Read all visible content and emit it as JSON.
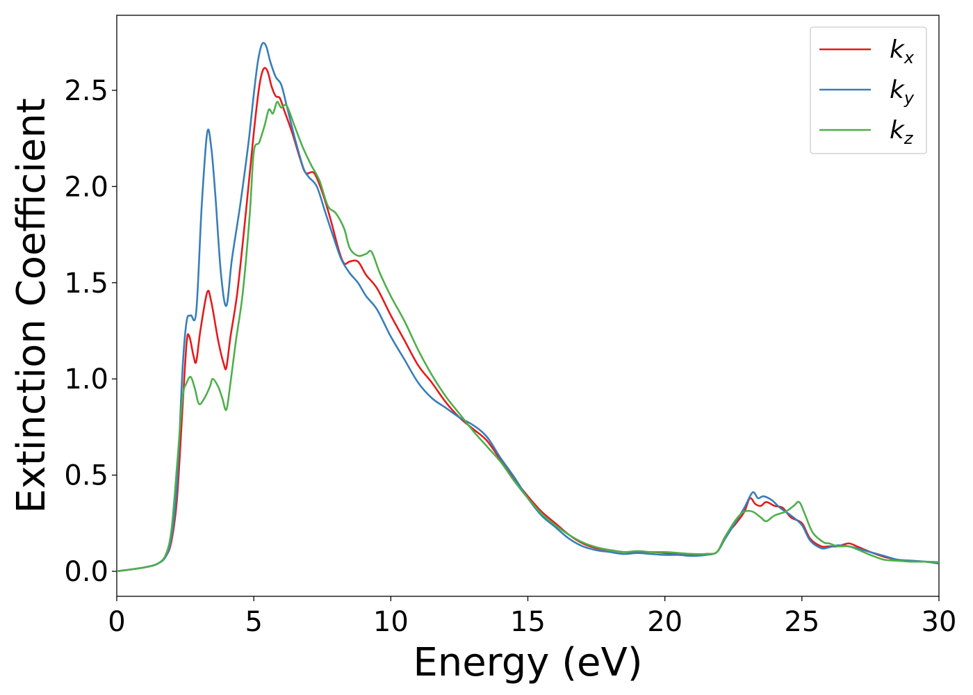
{
  "chart_data": {
    "type": "line",
    "title": "",
    "xlabel": "Energy (eV)",
    "ylabel": "Extinction Coefficient",
    "xlim": [
      0,
      30
    ],
    "ylim": [
      -0.13,
      2.89
    ],
    "xticks": [
      0,
      5,
      10,
      15,
      20,
      25,
      30
    ],
    "xtick_labels": [
      "0",
      "5",
      "10",
      "15",
      "20",
      "25",
      "30"
    ],
    "yticks": [
      0.0,
      0.5,
      1.0,
      1.5,
      2.0,
      2.5
    ],
    "ytick_labels": [
      "0.0",
      "0.5",
      "1.0",
      "1.5",
      "2.0",
      "2.5"
    ],
    "grid": false,
    "legend_position": "top-right",
    "series": [
      {
        "name": "k",
        "subscript": "x",
        "color": "#e41a1c",
        "points": [
          [
            0,
            0
          ],
          [
            1,
            0.02
          ],
          [
            1.5,
            0.04
          ],
          [
            1.8,
            0.08
          ],
          [
            2.0,
            0.16
          ],
          [
            2.2,
            0.38
          ],
          [
            2.4,
            0.85
          ],
          [
            2.55,
            1.19
          ],
          [
            2.65,
            1.22
          ],
          [
            2.8,
            1.12
          ],
          [
            2.9,
            1.09
          ],
          [
            3.05,
            1.25
          ],
          [
            3.3,
            1.45
          ],
          [
            3.45,
            1.4
          ],
          [
            3.7,
            1.2
          ],
          [
            3.9,
            1.08
          ],
          [
            4.0,
            1.06
          ],
          [
            4.15,
            1.22
          ],
          [
            4.4,
            1.45
          ],
          [
            4.7,
            1.85
          ],
          [
            5.0,
            2.28
          ],
          [
            5.2,
            2.52
          ],
          [
            5.35,
            2.61
          ],
          [
            5.5,
            2.6
          ],
          [
            5.65,
            2.52
          ],
          [
            5.8,
            2.47
          ],
          [
            5.95,
            2.46
          ],
          [
            6.1,
            2.4
          ],
          [
            6.4,
            2.28
          ],
          [
            6.7,
            2.14
          ],
          [
            6.9,
            2.07
          ],
          [
            7.2,
            2.07
          ],
          [
            7.5,
            1.97
          ],
          [
            7.8,
            1.83
          ],
          [
            8.1,
            1.67
          ],
          [
            8.3,
            1.6
          ],
          [
            8.5,
            1.61
          ],
          [
            8.8,
            1.61
          ],
          [
            9.1,
            1.54
          ],
          [
            9.5,
            1.47
          ],
          [
            10.0,
            1.33
          ],
          [
            10.5,
            1.2
          ],
          [
            11.0,
            1.07
          ],
          [
            11.5,
            0.98
          ],
          [
            12.0,
            0.88
          ],
          [
            12.5,
            0.8
          ],
          [
            13.0,
            0.74
          ],
          [
            13.5,
            0.68
          ],
          [
            14.0,
            0.58
          ],
          [
            14.5,
            0.48
          ],
          [
            15.0,
            0.39
          ],
          [
            15.5,
            0.31
          ],
          [
            16.0,
            0.25
          ],
          [
            16.5,
            0.19
          ],
          [
            17.0,
            0.145
          ],
          [
            17.5,
            0.12
          ],
          [
            18.0,
            0.11
          ],
          [
            18.5,
            0.1
          ],
          [
            19.0,
            0.1
          ],
          [
            19.5,
            0.1
          ],
          [
            20.0,
            0.095
          ],
          [
            20.5,
            0.09
          ],
          [
            21.0,
            0.085
          ],
          [
            21.5,
            0.09
          ],
          [
            21.9,
            0.1
          ],
          [
            22.2,
            0.18
          ],
          [
            22.6,
            0.25
          ],
          [
            22.9,
            0.31
          ],
          [
            23.1,
            0.38
          ],
          [
            23.3,
            0.35
          ],
          [
            23.5,
            0.34
          ],
          [
            23.7,
            0.36
          ],
          [
            24.0,
            0.34
          ],
          [
            24.3,
            0.33
          ],
          [
            24.6,
            0.28
          ],
          [
            25.0,
            0.25
          ],
          [
            25.3,
            0.17
          ],
          [
            25.7,
            0.13
          ],
          [
            26.0,
            0.13
          ],
          [
            26.3,
            0.13
          ],
          [
            26.7,
            0.145
          ],
          [
            27.0,
            0.13
          ],
          [
            27.5,
            0.1
          ],
          [
            28.0,
            0.075
          ],
          [
            28.5,
            0.06
          ],
          [
            29.0,
            0.055
          ],
          [
            29.5,
            0.05
          ],
          [
            30,
            0.045
          ]
        ]
      },
      {
        "name": "k",
        "subscript": "y",
        "color": "#377eb8",
        "points": [
          [
            0,
            0
          ],
          [
            1,
            0.02
          ],
          [
            1.5,
            0.04
          ],
          [
            1.8,
            0.08
          ],
          [
            2.0,
            0.18
          ],
          [
            2.2,
            0.45
          ],
          [
            2.4,
            1.05
          ],
          [
            2.55,
            1.3
          ],
          [
            2.7,
            1.33
          ],
          [
            2.9,
            1.35
          ],
          [
            3.1,
            1.9
          ],
          [
            3.3,
            2.28
          ],
          [
            3.45,
            2.2
          ],
          [
            3.6,
            1.95
          ],
          [
            3.8,
            1.55
          ],
          [
            4.0,
            1.38
          ],
          [
            4.2,
            1.62
          ],
          [
            4.5,
            1.9
          ],
          [
            4.8,
            2.22
          ],
          [
            5.0,
            2.48
          ],
          [
            5.15,
            2.65
          ],
          [
            5.3,
            2.74
          ],
          [
            5.45,
            2.73
          ],
          [
            5.6,
            2.65
          ],
          [
            5.8,
            2.57
          ],
          [
            6.0,
            2.53
          ],
          [
            6.2,
            2.42
          ],
          [
            6.5,
            2.25
          ],
          [
            6.8,
            2.1
          ],
          [
            7.0,
            2.05
          ],
          [
            7.3,
            2.0
          ],
          [
            7.6,
            1.87
          ],
          [
            7.9,
            1.74
          ],
          [
            8.2,
            1.62
          ],
          [
            8.5,
            1.55
          ],
          [
            8.8,
            1.5
          ],
          [
            9.1,
            1.43
          ],
          [
            9.5,
            1.36
          ],
          [
            10.0,
            1.22
          ],
          [
            10.5,
            1.1
          ],
          [
            11.0,
            0.98
          ],
          [
            11.5,
            0.9
          ],
          [
            12.0,
            0.85
          ],
          [
            12.5,
            0.8
          ],
          [
            13.0,
            0.76
          ],
          [
            13.5,
            0.7
          ],
          [
            14.0,
            0.59
          ],
          [
            14.5,
            0.49
          ],
          [
            15.0,
            0.38
          ],
          [
            15.5,
            0.29
          ],
          [
            16.0,
            0.23
          ],
          [
            16.5,
            0.17
          ],
          [
            17.0,
            0.13
          ],
          [
            17.5,
            0.11
          ],
          [
            18.0,
            0.1
          ],
          [
            18.5,
            0.09
          ],
          [
            19.0,
            0.095
          ],
          [
            19.5,
            0.09
          ],
          [
            20.0,
            0.085
          ],
          [
            20.5,
            0.085
          ],
          [
            21.0,
            0.08
          ],
          [
            21.5,
            0.085
          ],
          [
            21.9,
            0.1
          ],
          [
            22.2,
            0.17
          ],
          [
            22.6,
            0.26
          ],
          [
            22.9,
            0.33
          ],
          [
            23.2,
            0.41
          ],
          [
            23.4,
            0.38
          ],
          [
            23.6,
            0.39
          ],
          [
            23.9,
            0.37
          ],
          [
            24.2,
            0.33
          ],
          [
            24.6,
            0.29
          ],
          [
            25.0,
            0.24
          ],
          [
            25.3,
            0.16
          ],
          [
            25.7,
            0.12
          ],
          [
            26.0,
            0.125
          ],
          [
            26.3,
            0.135
          ],
          [
            26.7,
            0.13
          ],
          [
            27.0,
            0.12
          ],
          [
            27.5,
            0.1
          ],
          [
            28.0,
            0.08
          ],
          [
            28.5,
            0.06
          ],
          [
            29.0,
            0.055
          ],
          [
            29.5,
            0.05
          ],
          [
            30,
            0.04
          ]
        ]
      },
      {
        "name": "k",
        "subscript": "z",
        "color": "#4daf4a",
        "points": [
          [
            0,
            0
          ],
          [
            1,
            0.02
          ],
          [
            1.5,
            0.04
          ],
          [
            1.8,
            0.09
          ],
          [
            2.0,
            0.22
          ],
          [
            2.2,
            0.55
          ],
          [
            2.4,
            0.9
          ],
          [
            2.55,
            0.98
          ],
          [
            2.7,
            1.01
          ],
          [
            2.85,
            0.95
          ],
          [
            3.0,
            0.87
          ],
          [
            3.2,
            0.9
          ],
          [
            3.4,
            0.96
          ],
          [
            3.5,
            1.0
          ],
          [
            3.7,
            0.96
          ],
          [
            3.85,
            0.9
          ],
          [
            4.0,
            0.84
          ],
          [
            4.15,
            0.98
          ],
          [
            4.35,
            1.2
          ],
          [
            4.6,
            1.45
          ],
          [
            4.85,
            1.85
          ],
          [
            5.0,
            2.18
          ],
          [
            5.2,
            2.23
          ],
          [
            5.4,
            2.32
          ],
          [
            5.55,
            2.4
          ],
          [
            5.7,
            2.38
          ],
          [
            5.85,
            2.44
          ],
          [
            6.0,
            2.41
          ],
          [
            6.2,
            2.42
          ],
          [
            6.5,
            2.31
          ],
          [
            6.8,
            2.2
          ],
          [
            7.1,
            2.11
          ],
          [
            7.4,
            2.03
          ],
          [
            7.7,
            1.9
          ],
          [
            8.0,
            1.86
          ],
          [
            8.3,
            1.78
          ],
          [
            8.5,
            1.68
          ],
          [
            8.8,
            1.64
          ],
          [
            9.1,
            1.65
          ],
          [
            9.3,
            1.66
          ],
          [
            9.6,
            1.55
          ],
          [
            10.0,
            1.43
          ],
          [
            10.5,
            1.3
          ],
          [
            11.0,
            1.15
          ],
          [
            11.5,
            1.02
          ],
          [
            12.0,
            0.91
          ],
          [
            12.5,
            0.82
          ],
          [
            13.0,
            0.73
          ],
          [
            13.5,
            0.65
          ],
          [
            14.0,
            0.57
          ],
          [
            14.5,
            0.47
          ],
          [
            15.0,
            0.38
          ],
          [
            15.5,
            0.3
          ],
          [
            16.0,
            0.24
          ],
          [
            16.5,
            0.19
          ],
          [
            17.0,
            0.15
          ],
          [
            17.5,
            0.125
          ],
          [
            18.0,
            0.11
          ],
          [
            18.5,
            0.1
          ],
          [
            19.0,
            0.105
          ],
          [
            19.5,
            0.1
          ],
          [
            20.0,
            0.1
          ],
          [
            20.5,
            0.095
          ],
          [
            21.0,
            0.09
          ],
          [
            21.5,
            0.09
          ],
          [
            21.9,
            0.1
          ],
          [
            22.2,
            0.18
          ],
          [
            22.6,
            0.27
          ],
          [
            22.9,
            0.31
          ],
          [
            23.2,
            0.31
          ],
          [
            23.5,
            0.28
          ],
          [
            23.7,
            0.26
          ],
          [
            24.0,
            0.29
          ],
          [
            24.4,
            0.31
          ],
          [
            24.7,
            0.34
          ],
          [
            24.9,
            0.36
          ],
          [
            25.1,
            0.3
          ],
          [
            25.4,
            0.2
          ],
          [
            25.8,
            0.15
          ],
          [
            26.0,
            0.145
          ],
          [
            26.3,
            0.13
          ],
          [
            26.7,
            0.13
          ],
          [
            27.0,
            0.115
          ],
          [
            27.5,
            0.085
          ],
          [
            28.0,
            0.06
          ],
          [
            28.5,
            0.055
          ],
          [
            29.0,
            0.05
          ],
          [
            29.5,
            0.05
          ],
          [
            30,
            0.048
          ]
        ]
      }
    ]
  }
}
